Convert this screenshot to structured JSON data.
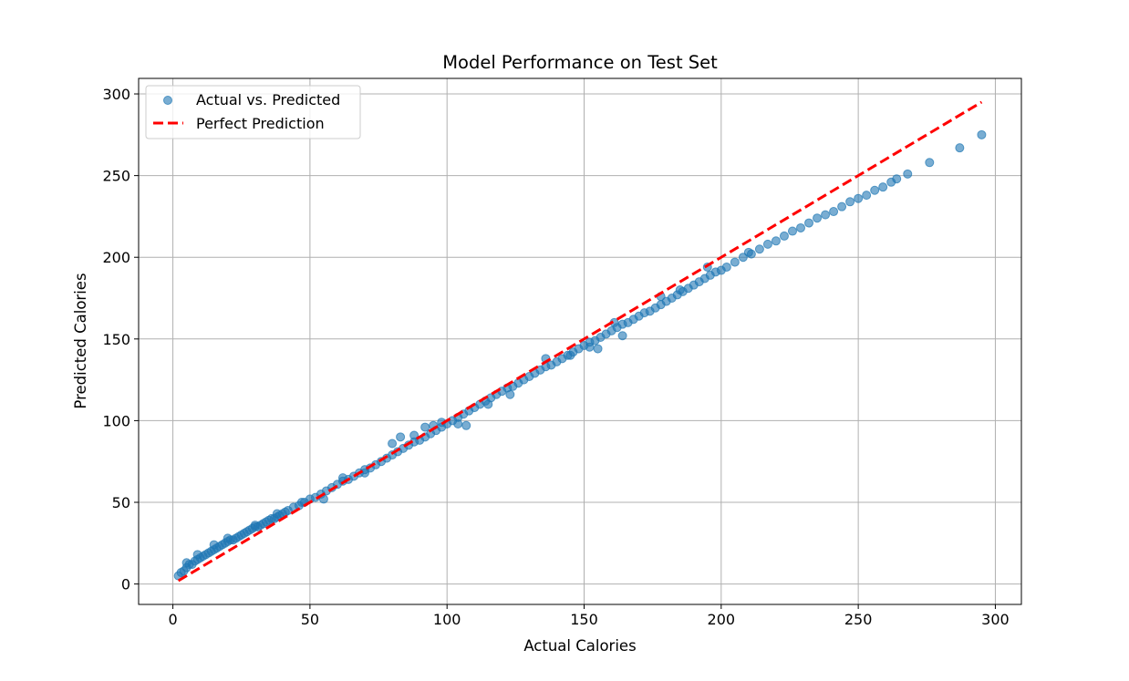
{
  "chart_data": {
    "type": "scatter",
    "title": "Model Performance on Test Set",
    "xlabel": "Actual Calories",
    "ylabel": "Predicted Calories",
    "xlim": [
      -12.5,
      309.5
    ],
    "ylim": [
      -12.5,
      309.5
    ],
    "x_ticks": [
      0,
      50,
      100,
      150,
      200,
      250,
      300
    ],
    "y_ticks": [
      0,
      50,
      100,
      150,
      200,
      250,
      300
    ],
    "grid": true,
    "legend_position": "upper-left",
    "series": [
      {
        "name": "Actual vs. Predicted",
        "kind": "scatter",
        "color": "#1f77b4",
        "points": [
          [
            2,
            5
          ],
          [
            3,
            7
          ],
          [
            4,
            8
          ],
          [
            5,
            10
          ],
          [
            6,
            12
          ],
          [
            7,
            12
          ],
          [
            8,
            14
          ],
          [
            9,
            15
          ],
          [
            10,
            16
          ],
          [
            11,
            17
          ],
          [
            12,
            18
          ],
          [
            13,
            19
          ],
          [
            14,
            20
          ],
          [
            15,
            21
          ],
          [
            16,
            22
          ],
          [
            17,
            23
          ],
          [
            18,
            24
          ],
          [
            19,
            25
          ],
          [
            20,
            26
          ],
          [
            21,
            27
          ],
          [
            22,
            27
          ],
          [
            23,
            28
          ],
          [
            24,
            29
          ],
          [
            25,
            30
          ],
          [
            26,
            31
          ],
          [
            27,
            32
          ],
          [
            28,
            33
          ],
          [
            29,
            34
          ],
          [
            30,
            35
          ],
          [
            31,
            35
          ],
          [
            32,
            36
          ],
          [
            33,
            37
          ],
          [
            34,
            38
          ],
          [
            35,
            39
          ],
          [
            36,
            40
          ],
          [
            37,
            40
          ],
          [
            38,
            41
          ],
          [
            39,
            42
          ],
          [
            40,
            43
          ],
          [
            41,
            44
          ],
          [
            42,
            45
          ],
          [
            44,
            47
          ],
          [
            46,
            48
          ],
          [
            48,
            50
          ],
          [
            50,
            52
          ],
          [
            52,
            53
          ],
          [
            54,
            55
          ],
          [
            56,
            57
          ],
          [
            58,
            59
          ],
          [
            60,
            61
          ],
          [
            62,
            63
          ],
          [
            64,
            64
          ],
          [
            66,
            66
          ],
          [
            68,
            68
          ],
          [
            70,
            70
          ],
          [
            72,
            71
          ],
          [
            74,
            73
          ],
          [
            76,
            75
          ],
          [
            78,
            77
          ],
          [
            80,
            79
          ],
          [
            82,
            81
          ],
          [
            84,
            83
          ],
          [
            86,
            85
          ],
          [
            88,
            87
          ],
          [
            90,
            88
          ],
          [
            92,
            90
          ],
          [
            94,
            92
          ],
          [
            96,
            94
          ],
          [
            98,
            96
          ],
          [
            100,
            98
          ],
          [
            102,
            100
          ],
          [
            104,
            102
          ],
          [
            106,
            104
          ],
          [
            108,
            106
          ],
          [
            110,
            108
          ],
          [
            112,
            110
          ],
          [
            114,
            112
          ],
          [
            116,
            114
          ],
          [
            118,
            116
          ],
          [
            120,
            118
          ],
          [
            122,
            120
          ],
          [
            124,
            121
          ],
          [
            126,
            123
          ],
          [
            128,
            125
          ],
          [
            130,
            127
          ],
          [
            132,
            129
          ],
          [
            134,
            131
          ],
          [
            136,
            133
          ],
          [
            138,
            134
          ],
          [
            140,
            136
          ],
          [
            142,
            138
          ],
          [
            144,
            140
          ],
          [
            146,
            142
          ],
          [
            148,
            144
          ],
          [
            150,
            146
          ],
          [
            152,
            148
          ],
          [
            154,
            149
          ],
          [
            156,
            151
          ],
          [
            158,
            153
          ],
          [
            160,
            155
          ],
          [
            162,
            157
          ],
          [
            164,
            159
          ],
          [
            166,
            160
          ],
          [
            168,
            162
          ],
          [
            170,
            164
          ],
          [
            172,
            166
          ],
          [
            174,
            167
          ],
          [
            176,
            169
          ],
          [
            178,
            171
          ],
          [
            180,
            173
          ],
          [
            182,
            175
          ],
          [
            184,
            177
          ],
          [
            186,
            179
          ],
          [
            188,
            181
          ],
          [
            190,
            183
          ],
          [
            192,
            185
          ],
          [
            194,
            187
          ],
          [
            196,
            189
          ],
          [
            198,
            191
          ],
          [
            200,
            192
          ],
          [
            202,
            194
          ],
          [
            205,
            197
          ],
          [
            208,
            200
          ],
          [
            211,
            202
          ],
          [
            214,
            205
          ],
          [
            217,
            208
          ],
          [
            220,
            210
          ],
          [
            223,
            213
          ],
          [
            226,
            216
          ],
          [
            229,
            218
          ],
          [
            232,
            221
          ],
          [
            235,
            224
          ],
          [
            238,
            226
          ],
          [
            241,
            228
          ],
          [
            244,
            231
          ],
          [
            247,
            234
          ],
          [
            250,
            236
          ],
          [
            253,
            238
          ],
          [
            256,
            241
          ],
          [
            259,
            243
          ],
          [
            262,
            246
          ],
          [
            264,
            248
          ],
          [
            268,
            251
          ],
          [
            276,
            258
          ],
          [
            287,
            267
          ],
          [
            295,
            275
          ],
          [
            80,
            86
          ],
          [
            83,
            90
          ],
          [
            88,
            91
          ],
          [
            92,
            96
          ],
          [
            95,
            97
          ],
          [
            98,
            99
          ],
          [
            104,
            98
          ],
          [
            107,
            97
          ],
          [
            115,
            110
          ],
          [
            123,
            116
          ],
          [
            136,
            138
          ],
          [
            145,
            140
          ],
          [
            152,
            145
          ],
          [
            155,
            144
          ],
          [
            161,
            160
          ],
          [
            164,
            152
          ],
          [
            178,
            176
          ],
          [
            185,
            180
          ],
          [
            195,
            194
          ],
          [
            210,
            203
          ],
          [
            47,
            50
          ],
          [
            55,
            52
          ],
          [
            62,
            65
          ],
          [
            70,
            68
          ],
          [
            30,
            36
          ],
          [
            20,
            28
          ],
          [
            9,
            18
          ],
          [
            5,
            13
          ],
          [
            15,
            24
          ],
          [
            38,
            43
          ]
        ]
      },
      {
        "name": "Perfect Prediction",
        "kind": "line",
        "style": "dashed",
        "color": "#ff0000",
        "x": [
          2,
          295
        ],
        "y": [
          2,
          295
        ]
      }
    ]
  }
}
